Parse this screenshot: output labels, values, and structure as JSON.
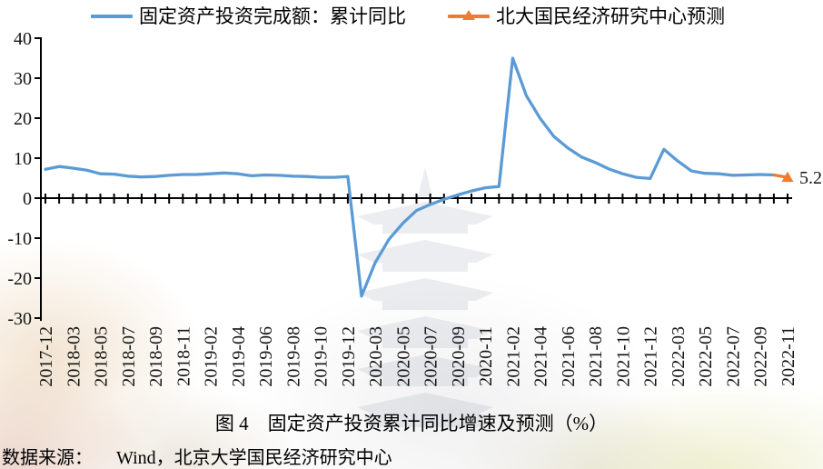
{
  "legend": {
    "items": [
      {
        "label": "固定资产投资完成额：累计同比",
        "color": "#5B9BD5",
        "marker": "line"
      },
      {
        "label": "北大国民经济研究中心预测",
        "color": "#ED7D31",
        "marker": "line-triangle"
      }
    ]
  },
  "caption": "图 4　固定资产投资累计同比增速及预测（%）",
  "source": {
    "label": "数据来源：",
    "text": "Wind，北京大学国民经济研究中心"
  },
  "chart_data": {
    "type": "line",
    "title": "图 4 固定资产投资累计同比增速及预测（%）",
    "xlabel": "",
    "ylabel": "",
    "ylim": [
      -30,
      40
    ],
    "grid": false,
    "legend_position": "top",
    "y_ticks": [
      40,
      30,
      20,
      10,
      0,
      -10,
      -20,
      -30
    ],
    "label_step": 2,
    "x_tick_labels": [
      "2017-12",
      "2018-03",
      "2018-05",
      "2018-07",
      "2018-09",
      "2018-11",
      "2019-02",
      "2019-04",
      "2019-06",
      "2019-08",
      "2019-10",
      "2019-12",
      "2020-03",
      "2020-05",
      "2020-07",
      "2020-09",
      "2020-11",
      "2021-02",
      "2021-04",
      "2021-06",
      "2021-08",
      "2021-10",
      "2021-12",
      "2022-03",
      "2022-05",
      "2022-07",
      "2022-09",
      "2022-11"
    ],
    "categories": [
      "2017-12",
      "2018-02",
      "2018-03",
      "2018-04",
      "2018-05",
      "2018-06",
      "2018-07",
      "2018-08",
      "2018-09",
      "2018-10",
      "2018-11",
      "2018-12",
      "2019-02",
      "2019-03",
      "2019-04",
      "2019-05",
      "2019-06",
      "2019-07",
      "2019-08",
      "2019-09",
      "2019-10",
      "2019-11",
      "2019-12",
      "2020-02",
      "2020-03",
      "2020-04",
      "2020-05",
      "2020-06",
      "2020-07",
      "2020-08",
      "2020-09",
      "2020-10",
      "2020-11",
      "2020-12",
      "2021-02",
      "2021-03",
      "2021-04",
      "2021-05",
      "2021-06",
      "2021-07",
      "2021-08",
      "2021-09",
      "2021-10",
      "2021-11",
      "2021-12",
      "2022-02",
      "2022-03",
      "2022-04",
      "2022-05",
      "2022-06",
      "2022-07",
      "2022-08",
      "2022-09",
      "2022-10",
      "2022-11"
    ],
    "series": [
      {
        "name": "固定资产投资完成额：累计同比",
        "color": "#5B9BD5",
        "values": [
          7.2,
          7.9,
          7.5,
          7.0,
          6.1,
          6.0,
          5.5,
          5.3,
          5.4,
          5.7,
          5.9,
          5.9,
          6.1,
          6.3,
          6.1,
          5.6,
          5.8,
          5.7,
          5.5,
          5.4,
          5.2,
          5.2,
          5.4,
          -24.5,
          -16.1,
          -10.3,
          -6.3,
          -3.1,
          -1.6,
          -0.3,
          0.8,
          1.8,
          2.6,
          2.9,
          35.0,
          25.6,
          19.9,
          15.4,
          12.6,
          10.3,
          8.9,
          7.3,
          6.1,
          5.2,
          4.9,
          12.2,
          9.3,
          6.8,
          6.2,
          6.1,
          5.7,
          5.8,
          5.9,
          5.8,
          null
        ]
      },
      {
        "name": "北大国民经济研究中心预测",
        "color": "#ED7D31",
        "values": [
          null,
          null,
          null,
          null,
          null,
          null,
          null,
          null,
          null,
          null,
          null,
          null,
          null,
          null,
          null,
          null,
          null,
          null,
          null,
          null,
          null,
          null,
          null,
          null,
          null,
          null,
          null,
          null,
          null,
          null,
          null,
          null,
          null,
          null,
          null,
          null,
          null,
          null,
          null,
          null,
          null,
          null,
          null,
          null,
          null,
          null,
          null,
          null,
          null,
          null,
          null,
          null,
          null,
          5.8,
          5.2
        ]
      }
    ],
    "forecast_annotation": "5.2"
  }
}
